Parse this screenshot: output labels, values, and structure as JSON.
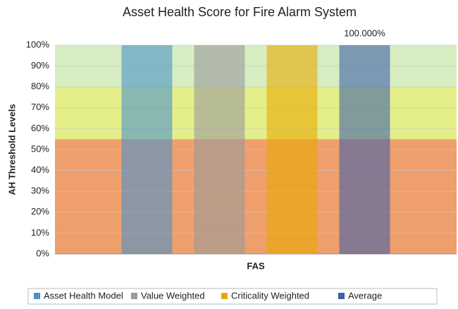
{
  "chart_data": {
    "type": "bar",
    "title": "Asset Health Score for Fire Alarm System",
    "y_label": "AH Threshold Levels",
    "categories": [
      "FAS"
    ],
    "series": [
      {
        "name": "Asset Health Model",
        "color": "#4b93c8",
        "values": [
          100
        ]
      },
      {
        "name": "Value Weighted",
        "color": "#9a9a9a",
        "values": [
          100
        ]
      },
      {
        "name": "Criticality Weighted",
        "color": "#e8aa00",
        "values": [
          100
        ]
      },
      {
        "name": "Average",
        "color": "#3f60a8",
        "values": [
          100
        ],
        "value_labels": [
          "100.000%"
        ]
      }
    ],
    "bands": [
      {
        "from": 0,
        "to": 55,
        "color": "#ef9f6c"
      },
      {
        "from": 55,
        "to": 80,
        "color": "#e4ef8a"
      },
      {
        "from": 80,
        "to": 100,
        "color": "#d6eec2"
      }
    ],
    "ylim": [
      0,
      100
    ],
    "yticks": [
      {
        "value": 0,
        "label": "0%"
      },
      {
        "value": 10,
        "label": "10%"
      },
      {
        "value": 20,
        "label": "20%"
      },
      {
        "value": 30,
        "label": "30%"
      },
      {
        "value": 40,
        "label": "40%"
      },
      {
        "value": 50,
        "label": "50%"
      },
      {
        "value": 60,
        "label": "60%"
      },
      {
        "value": 70,
        "label": "70%"
      },
      {
        "value": 80,
        "label": "80%"
      },
      {
        "value": 90,
        "label": "90%"
      },
      {
        "value": 100,
        "label": "100%"
      }
    ],
    "legend": "bottom"
  }
}
